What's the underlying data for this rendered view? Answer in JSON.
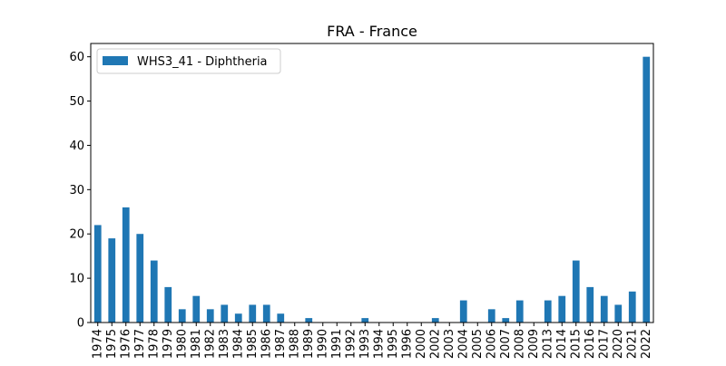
{
  "chart_data": {
    "type": "bar",
    "title": "FRA - France",
    "xlabel": "",
    "ylabel": "",
    "categories": [
      "1974",
      "1975",
      "1976",
      "1977",
      "1978",
      "1979",
      "1980",
      "1981",
      "1982",
      "1983",
      "1984",
      "1985",
      "1986",
      "1987",
      "1988",
      "1989",
      "1990",
      "1991",
      "1992",
      "1993",
      "1994",
      "1995",
      "1996",
      "2000",
      "2002",
      "2003",
      "2004",
      "2005",
      "2006",
      "2007",
      "2008",
      "2009",
      "2013",
      "2014",
      "2015",
      "2016",
      "2017",
      "2020",
      "2021",
      "2022"
    ],
    "series": [
      {
        "name": "WHS3_41 - Diphtheria",
        "color": "#1f77b4",
        "values": [
          22,
          19,
          26,
          20,
          14,
          8,
          3,
          6,
          3,
          4,
          2,
          4,
          4,
          2,
          0,
          1,
          0,
          0,
          0,
          1,
          0,
          0,
          0,
          0,
          1,
          0,
          5,
          0,
          3,
          1,
          5,
          0,
          5,
          6,
          14,
          8,
          6,
          4,
          7,
          60
        ]
      }
    ],
    "ylim": [
      0,
      63
    ],
    "yticks": [
      0,
      10,
      20,
      30,
      40,
      50,
      60
    ],
    "grid": false,
    "legend_position": "top-left"
  }
}
